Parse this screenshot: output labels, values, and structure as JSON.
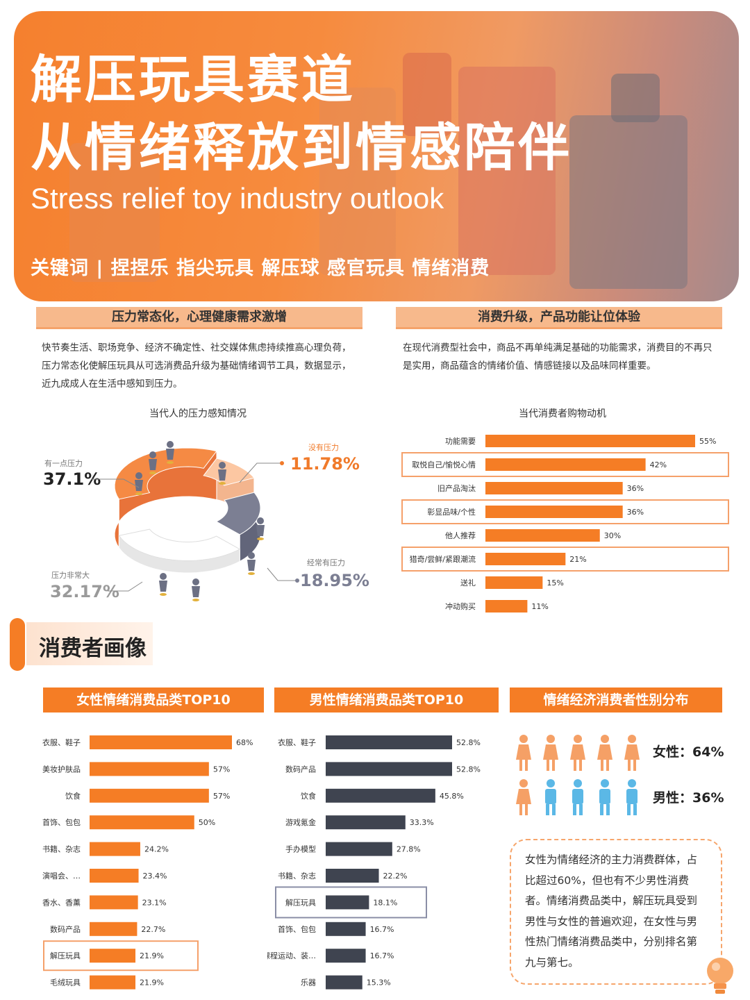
{
  "hero": {
    "title_line1": "解压玩具赛道",
    "title_line2": "从情绪释放到情感陪伴",
    "subtitle": "Stress relief toy industry outlook",
    "keywords": "关键词 | 捏捏乐 指尖玩具 解压球 感官玩具 情绪消费"
  },
  "left_section": {
    "header": "压力常态化，心理健康需求激增",
    "paragraph": "快节奏生活、职场竞争、经济不确定性、社交媒体焦虑持续推高心理负荷，压力常态化使解压玩具从可选消费品升级为基础情绪调节工具，数据显示，近九成成人在生活中感知到压力。"
  },
  "right_section": {
    "header": "消费升级，产品功能让位体验",
    "paragraph": "在现代消费型社会中，商品不再单纯满足基础的功能需求，消费目的不再只是实用，商品蕴含的情绪价值、情感链接以及品味同样重要。"
  },
  "portrait": {
    "title": "消费者画像"
  },
  "gender": {
    "header": "情绪经济消费者性别分布",
    "female_label": "女性：64%",
    "male_label": "男性：36%",
    "female_share": 0.64,
    "male_share": 0.36,
    "female_color": "#f5a066",
    "male_color": "#5bb8e6",
    "icon": "person-icon",
    "note": "女性为情绪经济的主力消费群体，占比超过60%，但也有不少男性消费者。情绪消费品类中，解压玩具受到男性与女性的普遍欢迎，在女性与男性热门情绪消费品类中，分别排名第九与第七。"
  },
  "colors": {
    "orange": "#f57d25",
    "light_orange": "#f7b98c",
    "peach": "#fcd2b4",
    "gray": "#7c7f93",
    "dark_bar": "#3f4450",
    "highlight_border": "#8a8ea6"
  },
  "chart_data": [
    {
      "type": "pie",
      "title": "当代人的压力感知情况",
      "series": [
        {
          "name": "有一点压力",
          "value": 37.1,
          "label": "37.1%"
        },
        {
          "name": "没有压力",
          "value": 11.78,
          "label": "11.78%"
        },
        {
          "name": "经常有压力",
          "value": 18.95,
          "label": "18.95%"
        },
        {
          "name": "压力非常大",
          "value": 32.17,
          "label": "32.17%"
        }
      ]
    },
    {
      "type": "bar",
      "title": "当代消费者购物动机",
      "categories": [
        "功能需要",
        "取悦自己/愉悦心情",
        "旧产品淘汰",
        "彰显品味/个性",
        "他人推荐",
        "猎奇/尝鲜/紧跟潮流",
        "送礼",
        "冲动购买"
      ],
      "values": [
        55,
        42,
        36,
        36,
        30,
        21,
        15,
        11
      ],
      "value_labels": [
        "55%",
        "42%",
        "36%",
        "36%",
        "30%",
        "21%",
        "15%",
        "11%"
      ],
      "highlighted": [
        "取悦自己/愉悦心情",
        "彰显品味/个性",
        "猎奇/尝鲜/紧跟潮流"
      ]
    },
    {
      "type": "bar",
      "title": "女性情绪消费品类TOP10",
      "categories": [
        "衣服、鞋子",
        "美妆护肤品",
        "饮食",
        "首饰、包包",
        "书籍、杂志",
        "演唱会、…",
        "香水、香薰",
        "数码产品",
        "解压玩具",
        "毛绒玩具"
      ],
      "values": [
        68,
        57,
        57,
        50,
        24.2,
        23.4,
        23.1,
        22.7,
        21.9,
        21.9
      ],
      "value_labels": [
        "68%",
        "57%",
        "57%",
        "50%",
        "24.2%",
        "23.4%",
        "23.1%",
        "22.7%",
        "21.9%",
        "21.9%"
      ],
      "highlighted": [
        "解压玩具"
      ]
    },
    {
      "type": "bar",
      "title": "男性情绪消费品类TOP10",
      "categories": [
        "衣服、鞋子",
        "数码产品",
        "饮食",
        "游戏氪金",
        "手办模型",
        "书籍、杂志",
        "解压玩具",
        "首饰、包包",
        "课程运动、装…",
        "乐器"
      ],
      "values": [
        52.8,
        52.8,
        45.8,
        33.3,
        27.8,
        22.2,
        18.1,
        16.7,
        16.7,
        15.3
      ],
      "value_labels": [
        "52.8%",
        "52.8%",
        "45.8%",
        "33.3%",
        "27.8%",
        "22.2%",
        "18.1%",
        "16.7%",
        "16.7%",
        "15.3%"
      ],
      "highlighted": [
        "解压玩具"
      ]
    }
  ]
}
